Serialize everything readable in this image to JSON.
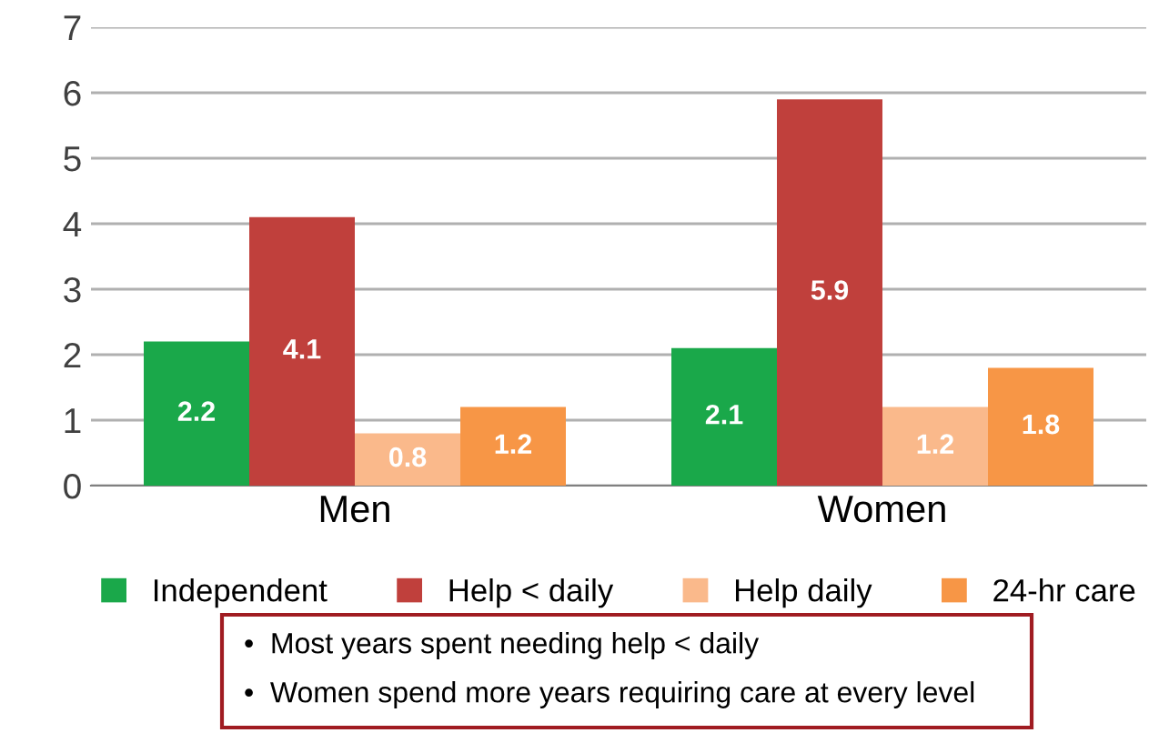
{
  "chart_data": {
    "type": "bar",
    "categories": [
      "Men",
      "Women"
    ],
    "series": [
      {
        "name": "Independent",
        "color": "#1aa84a",
        "values": [
          2.2,
          2.1
        ]
      },
      {
        "name": "Help < daily",
        "color": "#c0403c",
        "values": [
          4.1,
          5.9
        ]
      },
      {
        "name": "Help daily",
        "color": "#fab98b",
        "values": [
          0.8,
          1.2
        ]
      },
      {
        "name": "24-hr care",
        "color": "#f79646",
        "values": [
          1.2,
          1.8
        ]
      }
    ],
    "ylim": [
      0,
      7
    ],
    "yticks": [
      0,
      1,
      2,
      3,
      4,
      5,
      6,
      7
    ],
    "grid": "y",
    "legend": "bottom",
    "data_labels": true,
    "annotations": [
      "•  Most years spent needing help < daily",
      "•  Women spend more years requiring care at every level"
    ]
  }
}
